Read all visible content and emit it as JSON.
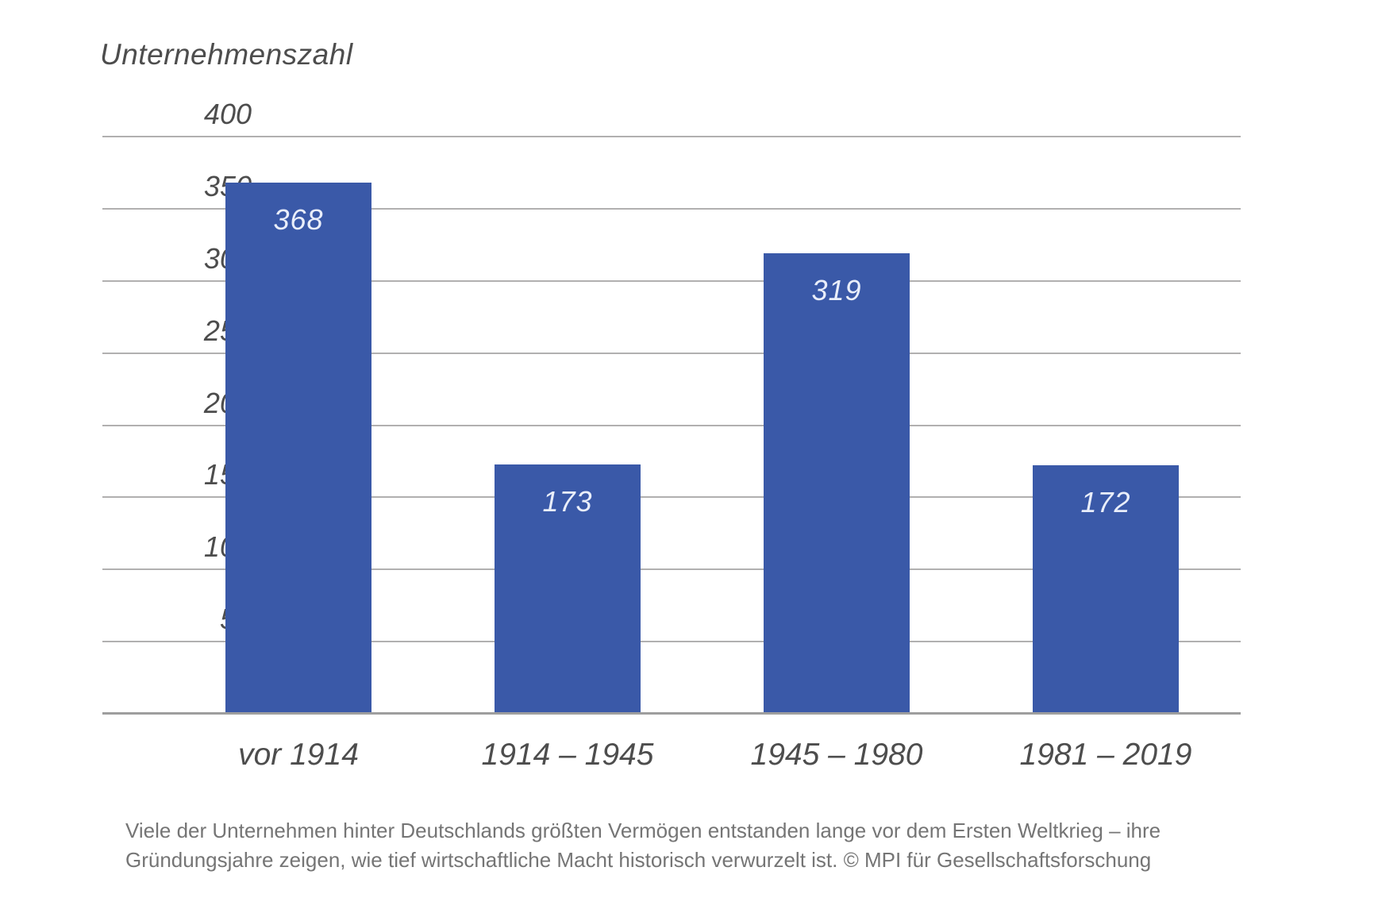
{
  "chart_data": {
    "type": "bar",
    "title": "Unternehmenszahl",
    "categories": [
      "vor 1914",
      "1914 – 1945",
      "1945 – 1980",
      "1981 – 2019"
    ],
    "values": [
      368,
      173,
      319,
      172
    ],
    "ylim": [
      0,
      400
    ],
    "yticks": [
      400,
      350,
      300,
      250,
      200,
      150,
      100,
      50,
      0
    ],
    "grid": true,
    "legend": "none",
    "bar_color": "#3a59a8",
    "bar_label_color": "#e9eefa",
    "axis_text_color": "#4d4d4d",
    "gridline_color": "#b1b0b0",
    "axis_line_color": "#9e9e9e"
  },
  "caption": {
    "lines": [
      "Viele der Unternehmen hinter Deutschlands größten Vermögen entstanden lange vor dem Ersten Weltkrieg – ihre",
      "Gründungsjahre zeigen, wie tief wirtschaftliche Macht historisch verwurzelt ist. © MPI für Gesellschaftsforschung"
    ],
    "color": "#757575"
  }
}
